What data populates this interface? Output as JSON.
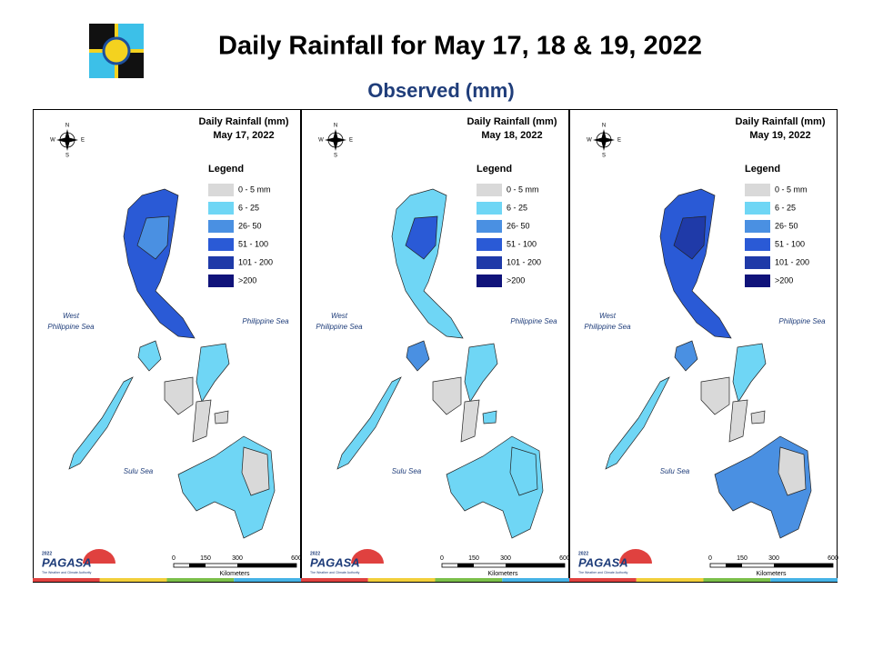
{
  "header": {
    "title": "Daily Rainfall for May 17, 18 & 19, 2022",
    "subtitle": "Observed (mm)"
  },
  "panels": [
    {
      "title": "Daily Rainfall (mm)",
      "date": "May 17, 2022"
    },
    {
      "title": "Daily Rainfall (mm)",
      "date": "May 18, 2022"
    },
    {
      "title": "Daily Rainfall (mm)",
      "date": "May 19, 2022"
    }
  ],
  "legend": {
    "title": "Legend",
    "items": [
      {
        "label": "0 - 5 mm",
        "color": "#d9d9d9"
      },
      {
        "label": "6 - 25",
        "color": "#6fd6f5"
      },
      {
        "label": "26- 50",
        "color": "#4a90e2"
      },
      {
        "label": "51 - 100",
        "color": "#2a5ad6"
      },
      {
        "label": "101 - 200",
        "color": "#1f3aa8"
      },
      {
        "label": ">200",
        "color": "#10137a"
      }
    ]
  },
  "compass": {
    "north": "N",
    "east": "E",
    "south": "S",
    "west": "W"
  },
  "seas": {
    "west_line1": "West",
    "west_line2": "Philippine Sea",
    "east": "Philippine Sea",
    "south": "Sulu Sea"
  },
  "scale": {
    "ticks": [
      "0",
      "150",
      "300",
      "600"
    ],
    "unit": "Kilometers"
  },
  "logo": {
    "name": "PAGASA",
    "year": "2022",
    "tagline": "The Weather and Climate Authority"
  }
}
